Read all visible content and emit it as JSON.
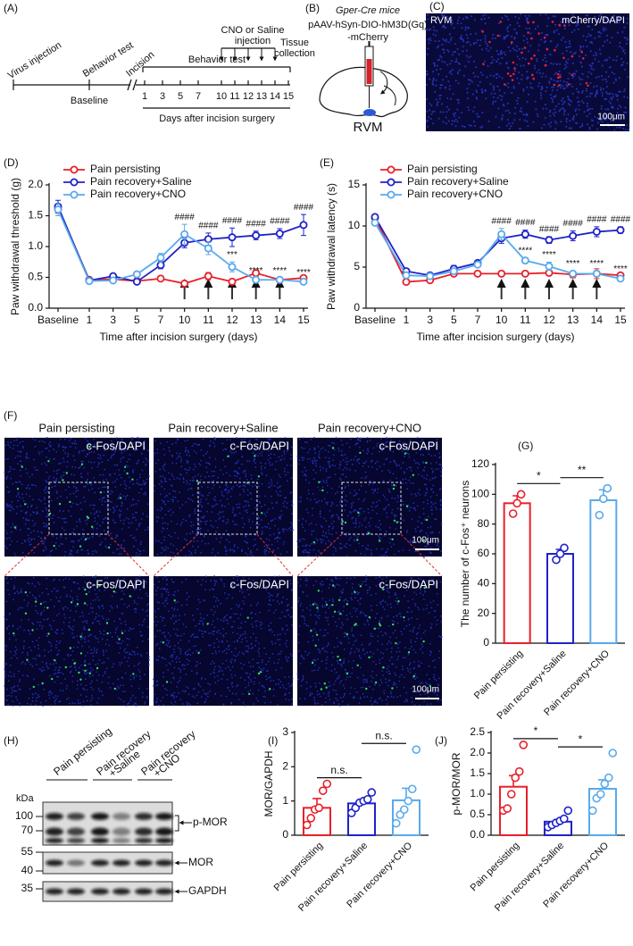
{
  "panel_a": {
    "label": "(A)",
    "events": [
      "Virus injection",
      "Behavior test",
      "Incision"
    ],
    "injection": [
      "CNO or Saline",
      "injection"
    ],
    "behavior": "Behavior test",
    "tissue": [
      "Tissue",
      "collection"
    ],
    "baseline": "Baseline",
    "days": [
      "1",
      "3",
      "5",
      "7",
      "10",
      "11",
      "12",
      "13",
      "14",
      "15"
    ],
    "axis_label": "Days after incision surgery"
  },
  "panel_b": {
    "label": "(B)",
    "mice": "Gper-Cre mice",
    "virus": [
      "pAAV-hSyn-DIO-hM3D(Gq)",
      "-mCherry"
    ],
    "region": "RVM"
  },
  "panel_c": {
    "label": "(C)",
    "region": "RVM",
    "stain": "mCherry/DAPI",
    "scale": "100μm"
  },
  "panel_f": {
    "label": "(F)",
    "titles": [
      "Pain persisting",
      "Pain recovery+Saline",
      "Pain recovery+CNO"
    ],
    "stain": "c-Fos/DAPI",
    "scale": "100μm"
  },
  "panel_h": {
    "label": "(H)",
    "groups": [
      [
        "Pain persisting"
      ],
      [
        "Pain recovery",
        "+Saline"
      ],
      [
        "Pain recovery",
        "+CNO"
      ]
    ],
    "kda": "kDa",
    "markers": [
      "100",
      "70",
      "55",
      "40",
      "35"
    ],
    "bands": [
      "p-MOR",
      "MOR",
      "GAPDH"
    ]
  },
  "chart_data": [
    {
      "type": "line",
      "label": "(D)",
      "ylabel": "Paw withdrawal threshold (g)",
      "xlabel": "Time after incision surgery (days)",
      "legend": "upper-left",
      "categories": [
        "Baseline",
        "1",
        "3",
        "5",
        "7",
        "10",
        "11",
        "12",
        "13",
        "14",
        "15"
      ],
      "ylim": [
        0,
        2
      ],
      "yticks": [
        {
          "value": 0,
          "label": "0.0"
        },
        {
          "value": 0.5,
          "label": "0.5"
        },
        {
          "value": 1,
          "label": "1.0"
        },
        {
          "value": 1.5,
          "label": "1.5"
        },
        {
          "value": 2,
          "label": "2.0"
        }
      ],
      "series": [
        {
          "name": "Pain persisting",
          "color": "#e8202a",
          "values": [
            1.62,
            0.46,
            0.47,
            0.44,
            0.48,
            0.4,
            0.52,
            0.43,
            0.57,
            0.46,
            0.49
          ],
          "errors": [
            0.08,
            0.02,
            0.02,
            0.02,
            0.03,
            0.03,
            0.06,
            0.03,
            0.05,
            0.02,
            0.03
          ]
        },
        {
          "name": "Pain recovery+Saline",
          "color": "#1f22c8",
          "values": [
            1.65,
            0.45,
            0.52,
            0.43,
            0.7,
            1.06,
            1.12,
            1.15,
            1.18,
            1.21,
            1.35
          ],
          "errors": [
            0.1,
            0.02,
            0.03,
            0.02,
            0.06,
            0.08,
            0.1,
            0.15,
            0.07,
            0.08,
            0.17
          ],
          "significance": [
            null,
            null,
            null,
            null,
            null,
            "####",
            "####",
            "####",
            "####",
            "####",
            "####"
          ]
        },
        {
          "name": "Pain recovery+CNO",
          "color": "#5aa9ec",
          "values": [
            1.6,
            0.44,
            0.45,
            0.55,
            0.82,
            1.2,
            0.97,
            0.67,
            0.46,
            0.46,
            0.43
          ],
          "errors": [
            0.1,
            0.02,
            0.02,
            0.03,
            0.07,
            0.16,
            0.1,
            0.08,
            0.03,
            0.03,
            0.03
          ],
          "significance": [
            null,
            null,
            null,
            null,
            null,
            null,
            null,
            "***",
            "****",
            "****",
            "****"
          ]
        }
      ]
    },
    {
      "type": "line",
      "label": "(E)",
      "ylabel": "Paw withdrawal latency (s)",
      "xlabel": "Time after incision surgery (days)",
      "legend": "upper-left",
      "categories": [
        "Baseline",
        "1",
        "3",
        "5",
        "7",
        "10",
        "11",
        "12",
        "13",
        "14",
        "15"
      ],
      "ylim": [
        0,
        15
      ],
      "yticks": [
        0,
        5,
        10,
        15
      ],
      "series": [
        {
          "name": "Pain persisting",
          "color": "#e8202a",
          "values": [
            11.0,
            3.2,
            3.4,
            4.2,
            4.2,
            4.2,
            4.2,
            4.3,
            4.1,
            4.2,
            4.0
          ],
          "errors": [
            0.3,
            0.2,
            0.2,
            0.3,
            0.3,
            0.3,
            0.3,
            0.3,
            0.4,
            0.6,
            0.3
          ]
        },
        {
          "name": "Pain recovery+Saline",
          "color": "#1f22c8",
          "values": [
            11.1,
            4.5,
            4.0,
            4.8,
            5.5,
            8.5,
            9.0,
            8.3,
            8.8,
            9.3,
            9.5
          ],
          "errors": [
            0.3,
            0.3,
            0.3,
            0.4,
            0.3,
            0.6,
            0.5,
            0.4,
            0.6,
            0.6,
            0.4
          ],
          "significance": [
            null,
            null,
            null,
            null,
            null,
            "####",
            "####",
            "####",
            "####",
            "####",
            "####"
          ]
        },
        {
          "name": "Pain recovery+CNO",
          "color": "#5aa9ec",
          "values": [
            10.4,
            4.0,
            3.9,
            4.5,
            5.3,
            9.0,
            5.8,
            5.1,
            4.2,
            4.2,
            3.6
          ],
          "errors": [
            0.3,
            0.3,
            0.3,
            0.3,
            0.3,
            0.7,
            0.3,
            0.5,
            0.3,
            0.3,
            0.3
          ],
          "significance": [
            null,
            null,
            null,
            null,
            null,
            null,
            "****",
            "****",
            "****",
            "****",
            "****"
          ]
        }
      ]
    },
    {
      "type": "bar",
      "label": "(G)",
      "ylabel": "The number of c-Fos⁺ neurons",
      "categories": [
        "Pain persisting",
        "Pain recovery+Saline",
        "Pain recovery+CNO"
      ],
      "colors": [
        "#e8202a",
        "#1f22c8",
        "#5aa9ec"
      ],
      "values": [
        94,
        60,
        96
      ],
      "errors": [
        5,
        3,
        7
      ],
      "points": [
        [
          87,
          94,
          100
        ],
        [
          56,
          60,
          64
        ],
        [
          86,
          97,
          104
        ]
      ],
      "ylim": [
        0,
        120
      ],
      "yticks": [
        0,
        20,
        40,
        60,
        80,
        100,
        120
      ],
      "comparisons": [
        {
          "from": "Pain persisting",
          "to": "Pain recovery+Saline",
          "label": "*"
        },
        {
          "from": "Pain recovery+Saline",
          "to": "Pain recovery+CNO",
          "label": "**"
        }
      ]
    },
    {
      "type": "bar",
      "label": "(I)",
      "ylabel": "MOR/GAPDH",
      "categories": [
        "Pain persisting",
        "Pain recovery+Saline",
        "Pain recovery+CNO"
      ],
      "colors": [
        "#e8202a",
        "#1f22c8",
        "#5aa9ec"
      ],
      "values": [
        0.8,
        0.93,
        1.02
      ],
      "errors": [
        0.27,
        0.1,
        0.35
      ],
      "points": [
        [
          0.3,
          0.5,
          0.75,
          0.8,
          1.3,
          1.5
        ],
        [
          0.65,
          0.8,
          0.95,
          1.0,
          1.05,
          1.25
        ],
        [
          0.35,
          0.6,
          0.75,
          1.0,
          1.35,
          2.5
        ]
      ],
      "ylim": [
        0,
        3
      ],
      "yticks": [
        0,
        1,
        2,
        3
      ],
      "comparisons": [
        {
          "from": "Pain persisting",
          "to": "Pain recovery+Saline",
          "label": "n.s."
        },
        {
          "from": "Pain recovery+Saline",
          "to": "Pain recovery+CNO",
          "label": "n.s."
        }
      ]
    },
    {
      "type": "bar",
      "label": "(J)",
      "ylabel": "p-MOR/MOR",
      "categories": [
        "Pain persisting",
        "Pain recovery+Saline",
        "Pain recovery+CNO"
      ],
      "colors": [
        "#e8202a",
        "#1f22c8",
        "#5aa9ec"
      ],
      "values": [
        1.18,
        0.33,
        1.13
      ],
      "errors": [
        0.27,
        0.05,
        0.22
      ],
      "points": [
        [
          0.6,
          0.65,
          1.0,
          1.4,
          1.55,
          2.2
        ],
        [
          0.2,
          0.25,
          0.3,
          0.35,
          0.4,
          0.6
        ],
        [
          0.6,
          0.9,
          1.0,
          1.25,
          1.4,
          2.0
        ]
      ],
      "ylim": [
        0,
        2.5
      ],
      "yticks": [
        {
          "value": 0,
          "label": "0.0"
        },
        {
          "value": 0.5,
          "label": "0.5"
        },
        {
          "value": 1,
          "label": "1.0"
        },
        {
          "value": 1.5,
          "label": "1.5"
        },
        {
          "value": 2,
          "label": "2.0"
        },
        {
          "value": 2.5,
          "label": "2.5"
        }
      ],
      "comparisons": [
        {
          "from": "Pain persisting",
          "to": "Pain recovery+Saline",
          "label": "*"
        },
        {
          "from": "Pain recovery+Saline",
          "to": "Pain recovery+CNO",
          "label": "*"
        }
      ]
    }
  ]
}
